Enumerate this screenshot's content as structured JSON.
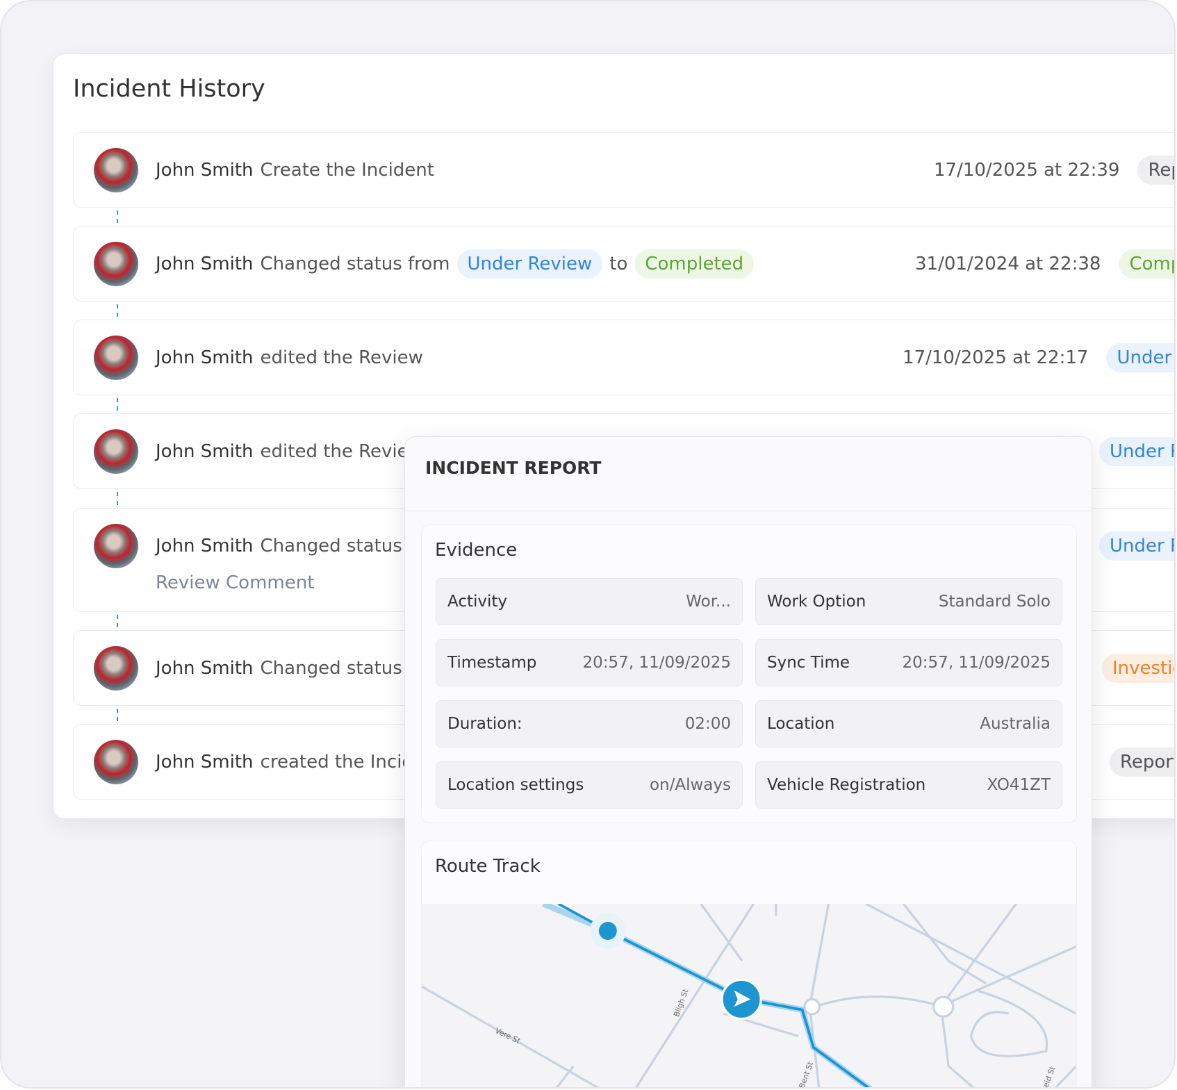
{
  "header": {
    "title": "Incident History"
  },
  "history": [
    {
      "name": "John Smith",
      "action": "Create the Incident",
      "date": "17/10/2025 at 22:39",
      "status": "Reported",
      "status_tone": "grey"
    },
    {
      "name": "John Smith",
      "action": "Changed status from",
      "from": "Under Review",
      "from_tone": "blue",
      "connector": "to",
      "to": "Completed",
      "to_tone": "green",
      "date": "31/01/2024 at 22:38",
      "status": "Completed",
      "status_tone": "green"
    },
    {
      "name": "John Smith",
      "action": "edited the Review",
      "date": "17/10/2025 at 22:17",
      "status": "Under Review",
      "status_tone": "blue"
    },
    {
      "name": "John Smith",
      "action": "edited the Review",
      "status": "Under Review",
      "status_tone": "blue"
    },
    {
      "name": "John Smith",
      "action": "Changed status",
      "comment": "Review Comment",
      "status": "Under Review",
      "status_tone": "blue"
    },
    {
      "name": "John Smith",
      "action": "Changed status",
      "status": "Investigating",
      "status_tone": "orange"
    },
    {
      "name": "John Smith",
      "action": "created the Incident",
      "status": "Reported",
      "status_tone": "grey"
    }
  ],
  "report": {
    "title": "INCIDENT REPORT",
    "evidence": {
      "title": "Evidence",
      "fields": [
        {
          "label": "Activity",
          "value": "Wor..."
        },
        {
          "label": "Work Option",
          "value": "Standard Solo"
        },
        {
          "label": "Timestamp",
          "value": "20:57, 11/09/2025"
        },
        {
          "label": "Sync Time",
          "value": "20:57, 11/09/2025"
        },
        {
          "label": "Duration:",
          "value": "02:00"
        },
        {
          "label": "Location",
          "value": "Australia"
        },
        {
          "label": "Location settings",
          "value": "on/Always"
        },
        {
          "label": "Vehicle Registration",
          "value": "XO41ZT"
        }
      ]
    },
    "route": {
      "title": "Route Track",
      "streets": [
        "Bligh St",
        "Vere St",
        "Bent St",
        "Reid St"
      ]
    }
  }
}
